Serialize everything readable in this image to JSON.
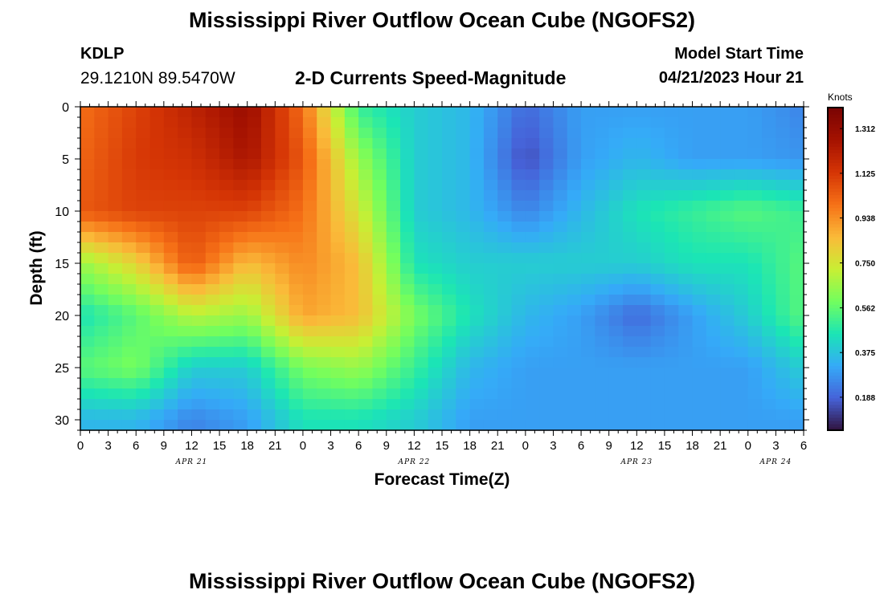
{
  "header": {
    "title": "Mississippi River Outflow Ocean Cube (NGOFS2)",
    "station": "KDLP",
    "coords": "29.1210N  89.5470W",
    "subtitle": "2-D Currents Speed-Magnitude",
    "model_start_label": "Model Start Time",
    "model_start_value": "04/21/2023 Hour 21"
  },
  "footer": {
    "title": "Mississippi River Outflow Ocean Cube (NGOFS2)"
  },
  "chart_data": {
    "type": "heatmap",
    "title": "2-D Currents Speed-Magnitude",
    "xlabel": "Forecast Time(Z)",
    "ylabel": "Depth (ft)",
    "x_range_hours": [
      0,
      78
    ],
    "y_range_ft": [
      0,
      31
    ],
    "x_tick_labels": [
      "0",
      "3",
      "6",
      "9",
      "12",
      "15",
      "18",
      "21",
      "0",
      "3",
      "6",
      "9",
      "12",
      "15",
      "18",
      "21",
      "0",
      "3",
      "6",
      "9",
      "12",
      "15",
      "18",
      "21",
      "0",
      "3",
      "6"
    ],
    "date_labels": [
      {
        "text": "APR 21",
        "hour": 12
      },
      {
        "text": "APR 22",
        "hour": 36
      },
      {
        "text": "APR 23",
        "hour": 60
      },
      {
        "text": "APR 24",
        "hour": 75
      }
    ],
    "y_ticks": [
      0,
      5,
      10,
      15,
      20,
      25,
      30
    ],
    "colorbar": {
      "label": "Knots",
      "min": 0.05,
      "max": 1.4,
      "ticks": [
        "1.312",
        "1.125",
        "0.938",
        "0.750",
        "0.562",
        "0.375",
        "0.188"
      ],
      "tick_values": [
        1.312,
        1.125,
        0.938,
        0.75,
        0.562,
        0.375,
        0.188
      ]
    },
    "grid_hours": [
      0,
      6,
      12,
      18,
      24,
      30,
      36,
      42,
      48,
      54,
      60,
      66,
      72,
      78
    ],
    "grid_depths_ft": [
      0,
      5,
      10,
      15,
      20,
      25,
      30
    ],
    "values_knots": [
      [
        1.0,
        1.1,
        1.2,
        1.3,
        1.0,
        0.5,
        0.4,
        0.35,
        0.2,
        0.3,
        0.3,
        0.3,
        0.3,
        0.25
      ],
      [
        1.02,
        1.12,
        1.15,
        1.25,
        1.05,
        0.65,
        0.4,
        0.35,
        0.15,
        0.3,
        0.35,
        0.3,
        0.3,
        0.28
      ],
      [
        1.05,
        1.1,
        1.1,
        1.1,
        1.0,
        0.75,
        0.4,
        0.35,
        0.25,
        0.35,
        0.45,
        0.5,
        0.55,
        0.5
      ],
      [
        0.65,
        0.8,
        1.05,
        0.85,
        0.95,
        0.85,
        0.45,
        0.4,
        0.4,
        0.4,
        0.4,
        0.45,
        0.45,
        0.55
      ],
      [
        0.45,
        0.55,
        0.7,
        0.65,
        0.9,
        0.85,
        0.6,
        0.45,
        0.35,
        0.3,
        0.2,
        0.3,
        0.4,
        0.55
      ],
      [
        0.55,
        0.6,
        0.4,
        0.4,
        0.6,
        0.65,
        0.5,
        0.35,
        0.3,
        0.3,
        0.3,
        0.3,
        0.3,
        0.4
      ],
      [
        0.35,
        0.35,
        0.25,
        0.3,
        0.45,
        0.45,
        0.4,
        0.3,
        0.3,
        0.3,
        0.3,
        0.3,
        0.3,
        0.3
      ]
    ]
  }
}
